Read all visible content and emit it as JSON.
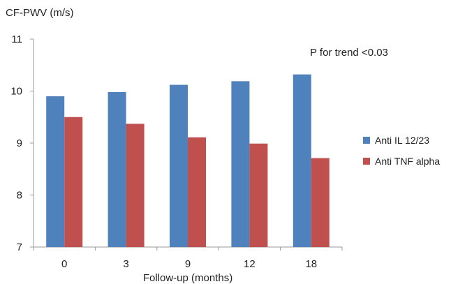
{
  "chart_data": {
    "type": "bar",
    "ylabel": "CF-PWV (m/s)",
    "xlabel": "Follow-up (months)",
    "categories": [
      "0",
      "3",
      "9",
      "12",
      "18"
    ],
    "series": [
      {
        "name": "Anti IL 12/23",
        "values": [
          9.9,
          9.98,
          10.12,
          10.19,
          10.32
        ],
        "color": "#4f81bd"
      },
      {
        "name": "Anti TNF alpha",
        "values": [
          9.5,
          9.37,
          9.11,
          8.99,
          8.71
        ],
        "color": "#c0504d"
      }
    ],
    "ylim": [
      7,
      11
    ],
    "yticks": [
      "7",
      "8",
      "9",
      "10",
      "11"
    ],
    "annotation": "P for trend <0.03",
    "grid": false,
    "legend_position": "right"
  }
}
